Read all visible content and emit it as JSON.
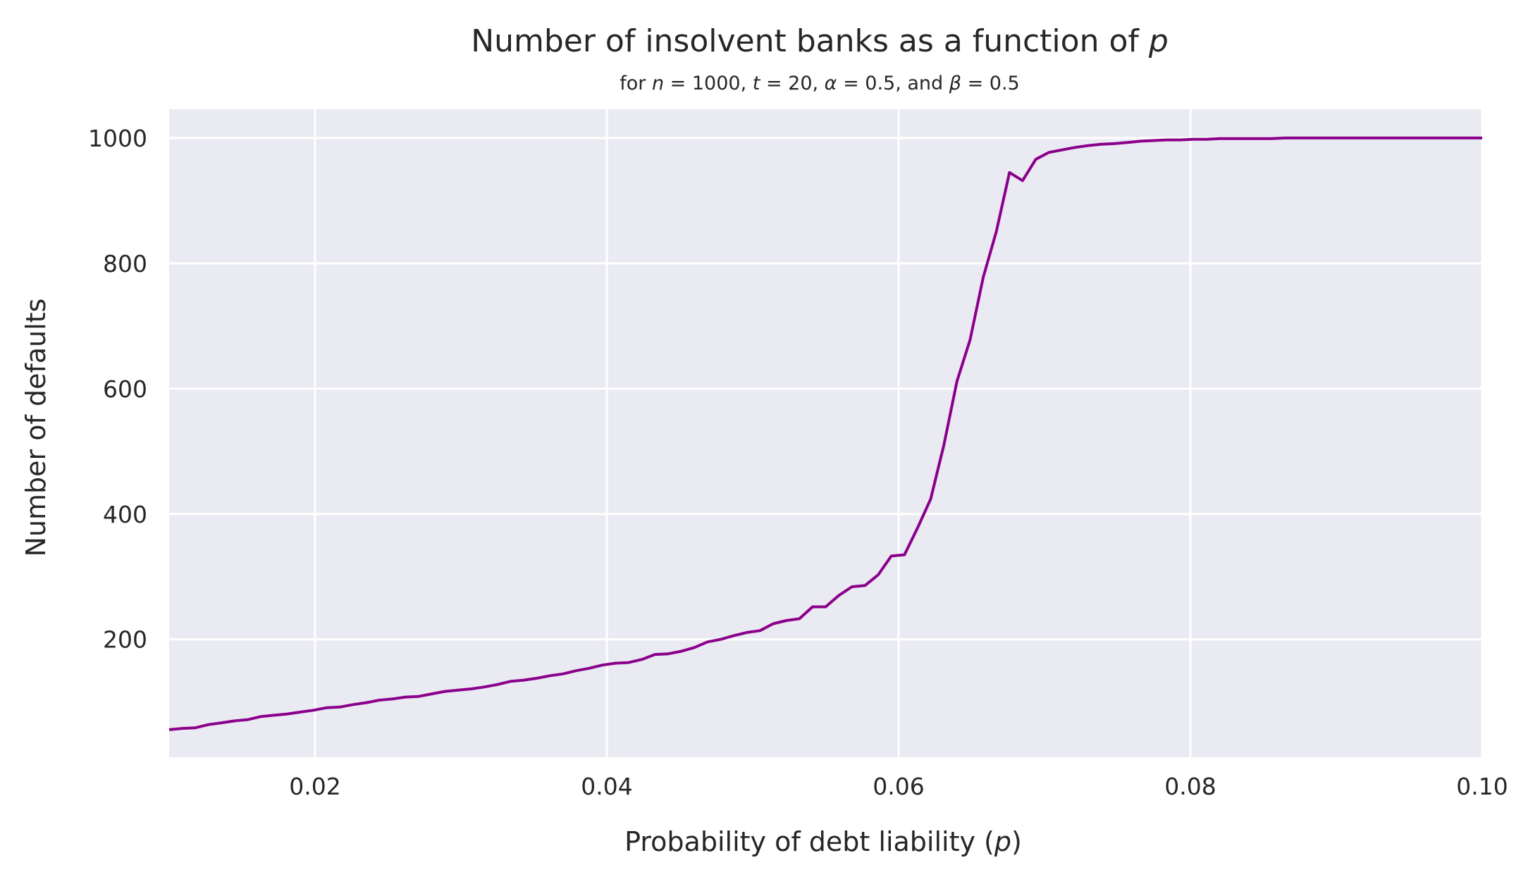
{
  "chart_data": {
    "type": "line",
    "title": "Number of insolvent banks as a function of p",
    "title_parts": {
      "text": "Number of insolvent banks as a function of ",
      "var": "p"
    },
    "subtitle": "for n = 1000, t = 20, α = 0.5, and β = 0.5",
    "subtitle_parts": {
      "p1": "for ",
      "n": "n",
      "p2": " = 1000, ",
      "t": "t",
      "p3": " = 20, ",
      "alpha": "α",
      "p4": " = 0.5, and ",
      "beta": "β",
      "p5": " = 0.5"
    },
    "xlabel": "Probability of debt liability (p)",
    "xlabel_parts": {
      "text": "Probability of debt liability (",
      "var": "p",
      "close": ")"
    },
    "ylabel": "Number of defaults",
    "xlim": [
      0.01,
      0.1
    ],
    "ylim": [
      12,
      1046
    ],
    "grid": true,
    "background": "#eaeaf2",
    "grid_color": "#ffffff",
    "line_color": "#8b008b",
    "x_ticks": [
      {
        "value": 0.02,
        "label": "0.02"
      },
      {
        "value": 0.04,
        "label": "0.04"
      },
      {
        "value": 0.06,
        "label": "0.06"
      },
      {
        "value": 0.08,
        "label": "0.08"
      },
      {
        "value": 0.1,
        "label": "0.10"
      }
    ],
    "y_ticks": [
      {
        "value": 200,
        "label": "200"
      },
      {
        "value": 400,
        "label": "400"
      },
      {
        "value": 600,
        "label": "600"
      },
      {
        "value": 800,
        "label": "800"
      },
      {
        "value": 1000,
        "label": "1000"
      }
    ],
    "series": [
      {
        "x": [
          0.01,
          0.0109,
          0.0118,
          0.0127,
          0.0136,
          0.0145,
          0.0154,
          0.0163,
          0.0172,
          0.0181,
          0.019,
          0.0199,
          0.0208,
          0.0217,
          0.0226,
          0.0235,
          0.0244,
          0.0253,
          0.0262,
          0.0271,
          0.028,
          0.0289,
          0.0298,
          0.0307,
          0.0316,
          0.0325,
          0.0334,
          0.0343,
          0.0352,
          0.0361,
          0.037,
          0.0379,
          0.0388,
          0.0397,
          0.0406,
          0.0415,
          0.0424,
          0.0433,
          0.0442,
          0.0451,
          0.046,
          0.0469,
          0.0478,
          0.0487,
          0.0496,
          0.0505,
          0.0514,
          0.0523,
          0.0532,
          0.0541,
          0.055,
          0.0559,
          0.0568,
          0.0577,
          0.0586,
          0.0595,
          0.0604,
          0.0613,
          0.0622,
          0.0631,
          0.064,
          0.0649,
          0.0658,
          0.0667,
          0.0676,
          0.0685,
          0.0694,
          0.0703,
          0.0712,
          0.0721,
          0.073,
          0.0739,
          0.0748,
          0.0757,
          0.0766,
          0.0775,
          0.0784,
          0.0793,
          0.0802,
          0.0811,
          0.082,
          0.0829,
          0.0838,
          0.0847,
          0.0856,
          0.0865,
          0.0874,
          0.0883,
          0.0892,
          0.0901,
          0.091,
          0.0919,
          0.0928,
          0.0937,
          0.0946,
          0.0955,
          0.0964,
          0.0973,
          0.0982,
          0.0991,
          0.1
        ],
        "y": [
          56,
          58,
          59,
          64,
          67,
          70,
          72,
          77,
          79,
          81,
          84,
          87,
          91,
          92,
          96,
          99,
          103,
          105,
          108,
          109,
          113,
          117,
          119,
          121,
          124,
          128,
          133,
          135,
          138,
          142,
          145,
          150,
          154,
          159,
          162,
          163,
          168,
          176,
          177,
          181,
          187,
          196,
          200,
          206,
          211,
          214,
          225,
          230,
          233,
          252,
          252,
          270,
          284,
          286,
          303,
          333,
          335,
          378,
          424,
          510,
          612,
          678,
          778,
          851,
          945,
          932,
          966,
          977,
          981,
          985,
          988,
          990,
          991,
          993,
          995,
          996,
          997,
          997,
          998,
          998,
          999,
          999,
          999,
          999,
          999,
          1000,
          1000,
          1000,
          1000,
          1000,
          1000,
          1000,
          1000,
          1000,
          1000,
          1000,
          1000,
          1000,
          1000,
          1000,
          1000
        ]
      }
    ]
  }
}
